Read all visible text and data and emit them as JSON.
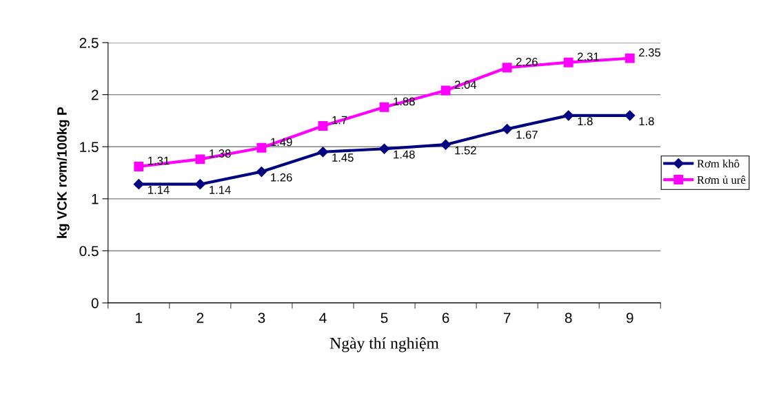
{
  "chart_data": {
    "type": "line",
    "xlabel": "Ngày thí nghiệm",
    "ylabel": "kg VCK rơm/100kg P",
    "categories": [
      "1",
      "2",
      "3",
      "4",
      "5",
      "6",
      "7",
      "8",
      "9"
    ],
    "series": [
      {
        "name": "Rơm khô",
        "color": "#000080",
        "marker": "diamond",
        "values": [
          1.14,
          1.14,
          1.26,
          1.45,
          1.48,
          1.52,
          1.67,
          1.8,
          1.8
        ]
      },
      {
        "name": "Rơm ủ urê",
        "color": "#ff00ff",
        "marker": "square",
        "values": [
          1.31,
          1.38,
          1.49,
          1.7,
          1.88,
          2.04,
          2.26,
          2.31,
          2.35
        ]
      }
    ],
    "ylim": [
      0,
      2.5
    ],
    "yticks": [
      0,
      0.5,
      1,
      1.5,
      2,
      2.5
    ],
    "grid": "y",
    "legend": "right",
    "data_labels": true,
    "line_style": "solid"
  }
}
